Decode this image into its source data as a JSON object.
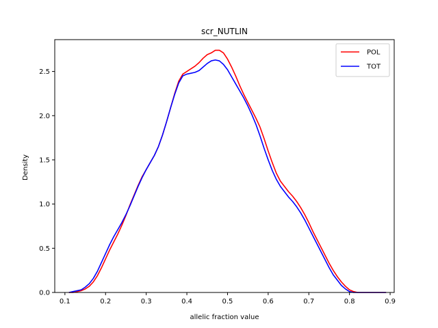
{
  "chart_data": {
    "type": "line",
    "title": "scr_NUTLIN",
    "xlabel": "allelic fraction value",
    "ylabel": "Density",
    "xlim": [
      0.075,
      0.91
    ],
    "ylim": [
      0,
      2.86
    ],
    "xticks": [
      0.1,
      0.2,
      0.3,
      0.4,
      0.5,
      0.6,
      0.7,
      0.8,
      0.9
    ],
    "yticks": [
      0.0,
      0.5,
      1.0,
      1.5,
      2.0,
      2.5
    ],
    "xtick_labels": [
      "0.1",
      "0.2",
      "0.3",
      "0.4",
      "0.5",
      "0.6",
      "0.7",
      "0.8",
      "0.9"
    ],
    "ytick_labels": [
      "0.0",
      "0.5",
      "1.0",
      "1.5",
      "2.0",
      "2.5"
    ],
    "grid": false,
    "legend_placement": "top-right",
    "series": [
      {
        "name": "POL",
        "color": "#ff0000",
        "x": [
          0.11,
          0.12,
          0.13,
          0.14,
          0.15,
          0.16,
          0.17,
          0.18,
          0.19,
          0.2,
          0.21,
          0.22,
          0.23,
          0.24,
          0.25,
          0.26,
          0.27,
          0.28,
          0.29,
          0.3,
          0.31,
          0.32,
          0.33,
          0.34,
          0.35,
          0.36,
          0.37,
          0.38,
          0.39,
          0.4,
          0.41,
          0.42,
          0.43,
          0.44,
          0.45,
          0.46,
          0.47,
          0.48,
          0.49,
          0.5,
          0.51,
          0.52,
          0.53,
          0.54,
          0.55,
          0.56,
          0.57,
          0.58,
          0.59,
          0.6,
          0.61,
          0.62,
          0.63,
          0.64,
          0.65,
          0.66,
          0.67,
          0.68,
          0.69,
          0.7,
          0.71,
          0.72,
          0.73,
          0.74,
          0.75,
          0.76,
          0.77,
          0.78,
          0.79,
          0.8,
          0.81,
          0.82,
          0.83,
          0.84,
          0.85,
          0.86,
          0.87,
          0.88,
          0.89
        ],
        "y": [
          0.0,
          0.0,
          0.01,
          0.02,
          0.04,
          0.07,
          0.12,
          0.19,
          0.28,
          0.38,
          0.48,
          0.57,
          0.66,
          0.76,
          0.87,
          0.99,
          1.1,
          1.21,
          1.31,
          1.39,
          1.47,
          1.55,
          1.65,
          1.78,
          1.93,
          2.09,
          2.25,
          2.39,
          2.47,
          2.5,
          2.53,
          2.56,
          2.6,
          2.65,
          2.69,
          2.71,
          2.74,
          2.74,
          2.71,
          2.64,
          2.55,
          2.45,
          2.34,
          2.24,
          2.15,
          2.06,
          1.97,
          1.87,
          1.74,
          1.6,
          1.47,
          1.35,
          1.26,
          1.2,
          1.14,
          1.09,
          1.03,
          0.96,
          0.88,
          0.79,
          0.69,
          0.6,
          0.51,
          0.42,
          0.33,
          0.25,
          0.18,
          0.12,
          0.07,
          0.03,
          0.01,
          0.0,
          0.0,
          0.0,
          0.0,
          0.0,
          0.0,
          0.0,
          0.0
        ]
      },
      {
        "name": "TOT",
        "color": "#0000ff",
        "x": [
          0.11,
          0.12,
          0.13,
          0.14,
          0.15,
          0.16,
          0.17,
          0.18,
          0.19,
          0.2,
          0.21,
          0.22,
          0.23,
          0.24,
          0.25,
          0.26,
          0.27,
          0.28,
          0.29,
          0.3,
          0.31,
          0.32,
          0.33,
          0.34,
          0.35,
          0.36,
          0.37,
          0.38,
          0.39,
          0.4,
          0.41,
          0.42,
          0.43,
          0.44,
          0.45,
          0.46,
          0.47,
          0.48,
          0.49,
          0.5,
          0.51,
          0.52,
          0.53,
          0.54,
          0.55,
          0.56,
          0.57,
          0.58,
          0.59,
          0.6,
          0.61,
          0.62,
          0.63,
          0.64,
          0.65,
          0.66,
          0.67,
          0.68,
          0.69,
          0.7,
          0.71,
          0.72,
          0.73,
          0.74,
          0.75,
          0.76,
          0.77,
          0.78,
          0.79,
          0.8,
          0.81,
          0.82,
          0.83,
          0.84,
          0.85,
          0.86,
          0.87,
          0.88,
          0.89
        ],
        "y": [
          0.0,
          0.01,
          0.02,
          0.03,
          0.06,
          0.1,
          0.16,
          0.24,
          0.34,
          0.44,
          0.54,
          0.63,
          0.71,
          0.79,
          0.88,
          0.98,
          1.09,
          1.2,
          1.3,
          1.39,
          1.47,
          1.55,
          1.65,
          1.78,
          1.93,
          2.09,
          2.24,
          2.37,
          2.45,
          2.47,
          2.48,
          2.49,
          2.51,
          2.55,
          2.59,
          2.62,
          2.63,
          2.62,
          2.58,
          2.52,
          2.44,
          2.36,
          2.28,
          2.2,
          2.11,
          2.01,
          1.9,
          1.77,
          1.63,
          1.5,
          1.38,
          1.28,
          1.2,
          1.14,
          1.08,
          1.03,
          0.97,
          0.9,
          0.82,
          0.73,
          0.64,
          0.55,
          0.46,
          0.37,
          0.28,
          0.2,
          0.14,
          0.08,
          0.04,
          0.01,
          0.0,
          0.0,
          0.0,
          0.0,
          0.0,
          0.0,
          0.0,
          0.0,
          0.0
        ]
      }
    ]
  }
}
